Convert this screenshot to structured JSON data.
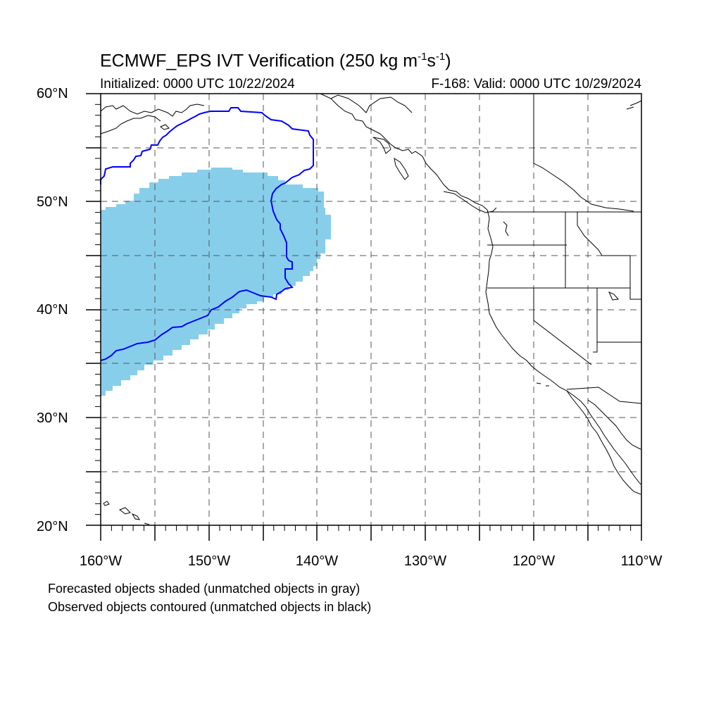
{
  "title": {
    "main": "ECMWF_EPS IVT Verification (250 kg m",
    "sup1": "-1",
    "s": "s",
    "sup2": "-1",
    "close": ")"
  },
  "initialized": "Initialized: 0000 UTC 10/22/2024",
  "valid": "F-168: Valid: 0000 UTC 10/29/2024",
  "lat_labels": [
    "60°N",
    "50°N",
    "40°N",
    "30°N",
    "20°N"
  ],
  "lon_labels": [
    "160°W",
    "150°W",
    "140°W",
    "130°W",
    "120°W",
    "110°W"
  ],
  "notes": [
    "Forecasted objects shaded (unmatched objects in gray)",
    "Observed objects contoured (unmatched objects in black)"
  ],
  "colors": {
    "forecast_fill": "#87ceeb",
    "observed_contour": "#0000ff",
    "grid": "#555555",
    "coast": "#000000"
  },
  "map": {
    "projection": "cylindrical-equidistant",
    "lon_range": [
      -160,
      -110
    ],
    "lat_range": [
      20,
      60
    ],
    "grid_interval_deg": 5
  }
}
